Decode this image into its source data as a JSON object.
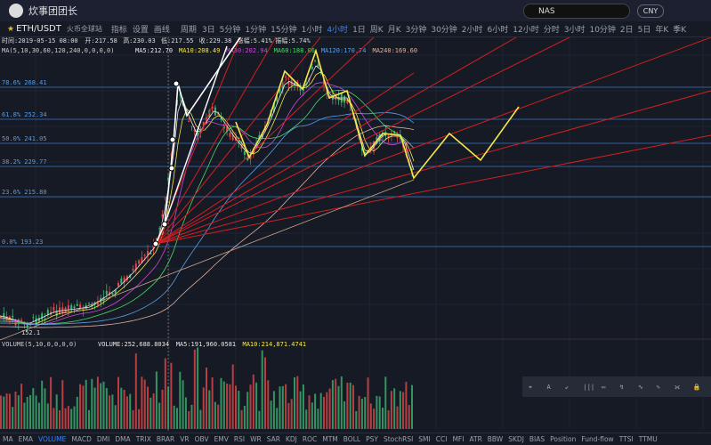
{
  "header": {
    "user": "炊事团团长",
    "search": "NAS",
    "currency": "CNY"
  },
  "toolbar": {
    "pair": "ETH/USDT",
    "exchange": "火币全球站",
    "actions": [
      "指标",
      "设置",
      "画线"
    ],
    "period_label": "周期",
    "periods": [
      "3日",
      "5分钟",
      "1分钟",
      "15分钟",
      "1小时",
      "4小时",
      "1日",
      "周K",
      "月K",
      "3分钟",
      "30分钟",
      "2小时",
      "6小时",
      "12小时",
      "分时",
      "3小时",
      "10分钟",
      "2日",
      "5日",
      "年K",
      "季K"
    ],
    "active_period": "4小时"
  },
  "info": [
    "时间:2019-05-15 08:00",
    "开:217.58",
    "高:230.03",
    "低:217.55",
    "收:229.38",
    "涨幅:5.41%",
    "振幅:5.74%"
  ],
  "ma": {
    "params": "MA(5,10,30,60,120,240,0,0,0,0)",
    "items": [
      {
        "text": "MA5:212.70",
        "color": "#e8e8e8"
      },
      {
        "text": "MA10:208.49",
        "color": "#f5e94a"
      },
      {
        "text": "MA30:202.94",
        "color": "#c84bd6"
      },
      {
        "text": "MA60:188.06",
        "color": "#4cd964"
      },
      {
        "text": "MA120:170.74",
        "color": "#5aa0e6"
      },
      {
        "text": "MA240:169.60",
        "color": "#e0b0a0"
      }
    ]
  },
  "fib": [
    "78.6% 268.41",
    "61.8% 252.34",
    "50.0% 241.05",
    "38.2% 229.77",
    "23.6% 215.80",
    "0.0% 193.23"
  ],
  "low_label": "152.1",
  "volume": {
    "params": "VOLUME(5,10,0,0,0,0)",
    "items": [
      {
        "text": "VOLUME:252,688.8034",
        "color": "#e8e8e8"
      },
      {
        "text": "MA5:191,960.0581",
        "color": "#e8e8e8"
      },
      {
        "text": "MA10:214,871.4741",
        "color": "#f5e94a"
      }
    ]
  },
  "indicators": [
    "MA",
    "EMA",
    "VOLUME",
    "MACD",
    "DMI",
    "DMA",
    "TRIX",
    "BRAR",
    "VR",
    "OBV",
    "EMV",
    "RSI",
    "WR",
    "SAR",
    "KDJ",
    "ROC",
    "MTM",
    "BOLL",
    "PSY",
    "StochRSI",
    "SMI",
    "CCI",
    "MFI",
    "ATR",
    "BBW",
    "SKDJ",
    "BIAS",
    "Position",
    "Fund-flow",
    "TTSI",
    "TTMU"
  ],
  "active_indicator": "VOLUME"
}
